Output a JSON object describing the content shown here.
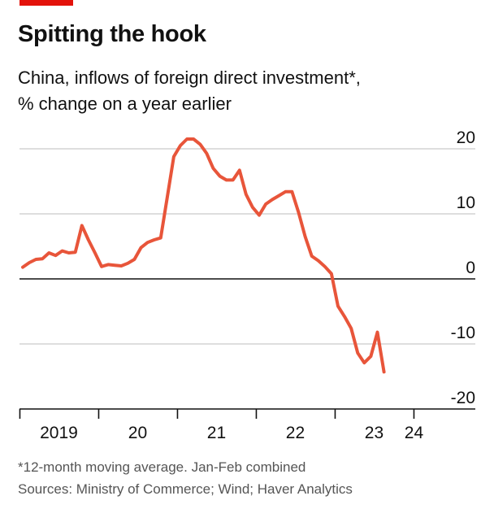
{
  "header": {
    "accent_color": "#e3120b",
    "title": "Spitting the hook",
    "subtitle_line1": "China, inflows of foreign direct investment*,",
    "subtitle_line2": "% change on a year earlier"
  },
  "footer": {
    "note": "*12-month moving average. Jan-Feb combined",
    "sources": "Sources: Ministry of Commerce; Wind; Haver Analytics"
  },
  "chart_data": {
    "type": "line",
    "title": "Spitting the hook",
    "ylabel": "% change on a year earlier",
    "ylim": [
      -20,
      20
    ],
    "ytick_values": [
      20,
      10,
      0,
      -10,
      -20
    ],
    "ytick_labels": [
      "20",
      "10",
      "0",
      "-10",
      "-20"
    ],
    "y_axis_position": "right",
    "grid": true,
    "line_color": "#e8553a",
    "xtick_labels": [
      "2019",
      "20",
      "21",
      "22",
      "23",
      "24"
    ],
    "series": [
      {
        "values": [
          {
            "x": "2019-01",
            "y": 1.8
          },
          {
            "x": "2019-02",
            "y": 2.5
          },
          {
            "x": "2019-03",
            "y": 3.0
          },
          {
            "x": "2019-04",
            "y": 3.1
          },
          {
            "x": "2019-05",
            "y": 4.0
          },
          {
            "x": "2019-06",
            "y": 3.6
          },
          {
            "x": "2019-07",
            "y": 4.3
          },
          {
            "x": "2019-08",
            "y": 4.0
          },
          {
            "x": "2019-09",
            "y": 4.1
          },
          {
            "x": "2019-10",
            "y": 8.2
          },
          {
            "x": "2019-11",
            "y": 6.0
          },
          {
            "x": "2019-12",
            "y": 4.0
          },
          {
            "x": "2020-01",
            "y": 1.9
          },
          {
            "x": "2020-02",
            "y": 2.2
          },
          {
            "x": "2020-03",
            "y": 2.1
          },
          {
            "x": "2020-04",
            "y": 2.0
          },
          {
            "x": "2020-05",
            "y": 2.4
          },
          {
            "x": "2020-06",
            "y": 3.0
          },
          {
            "x": "2020-07",
            "y": 4.8
          },
          {
            "x": "2020-08",
            "y": 5.6
          },
          {
            "x": "2020-09",
            "y": 6.0
          },
          {
            "x": "2020-10",
            "y": 6.3
          },
          {
            "x": "2020-11",
            "y": 12.5
          },
          {
            "x": "2020-12",
            "y": 18.8
          },
          {
            "x": "2021-01",
            "y": 20.5
          },
          {
            "x": "2021-02",
            "y": 21.5
          },
          {
            "x": "2021-03",
            "y": 21.5
          },
          {
            "x": "2021-04",
            "y": 20.7
          },
          {
            "x": "2021-05",
            "y": 19.3
          },
          {
            "x": "2021-06",
            "y": 17.0
          },
          {
            "x": "2021-07",
            "y": 15.8
          },
          {
            "x": "2021-08",
            "y": 15.2
          },
          {
            "x": "2021-09",
            "y": 15.2
          },
          {
            "x": "2021-10",
            "y": 16.7
          },
          {
            "x": "2021-11",
            "y": 13.0
          },
          {
            "x": "2021-12",
            "y": 11.0
          },
          {
            "x": "2022-01",
            "y": 9.8
          },
          {
            "x": "2022-02",
            "y": 11.5
          },
          {
            "x": "2022-03",
            "y": 12.2
          },
          {
            "x": "2022-04",
            "y": 12.8
          },
          {
            "x": "2022-05",
            "y": 13.4
          },
          {
            "x": "2022-06",
            "y": 13.4
          },
          {
            "x": "2022-07",
            "y": 10.2
          },
          {
            "x": "2022-08",
            "y": 6.5
          },
          {
            "x": "2022-09",
            "y": 3.5
          },
          {
            "x": "2022-10",
            "y": 2.8
          },
          {
            "x": "2022-11",
            "y": 1.9
          },
          {
            "x": "2022-12",
            "y": 0.8
          },
          {
            "x": "2023-01",
            "y": -4.2
          },
          {
            "x": "2023-02",
            "y": -5.8
          },
          {
            "x": "2023-03",
            "y": -7.6
          },
          {
            "x": "2023-04",
            "y": -11.4
          },
          {
            "x": "2023-05",
            "y": -12.9
          },
          {
            "x": "2023-06",
            "y": -11.9
          },
          {
            "x": "2023-07",
            "y": -8.2
          },
          {
            "x": "2023-08",
            "y": -14.3
          }
        ]
      }
    ]
  }
}
